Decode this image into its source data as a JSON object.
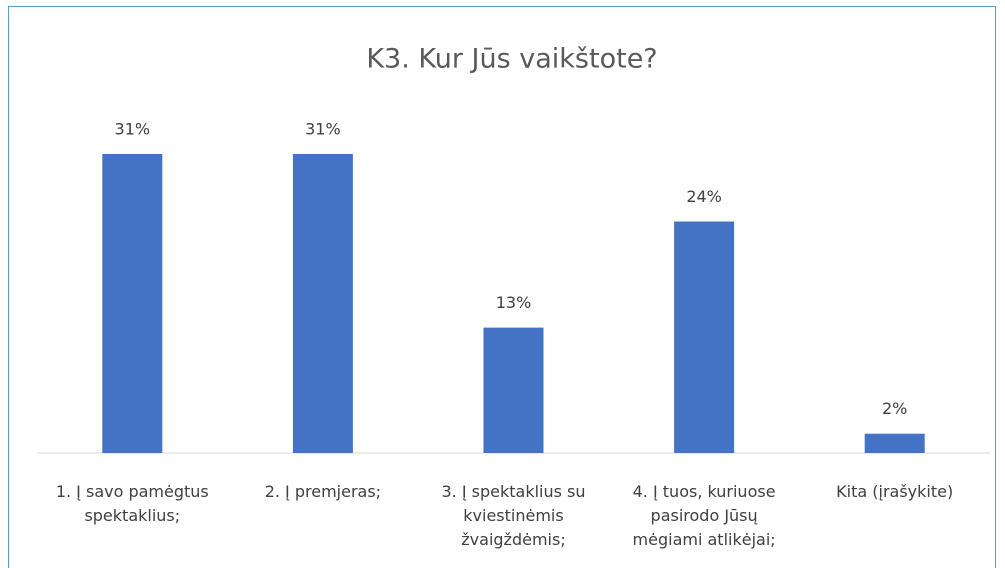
{
  "chart_data": {
    "type": "bar",
    "title": "K3. Kur Jūs vaikštote?",
    "categories": [
      "1. Į savo pamėgtus spektaklius;",
      "2. Į premjeras;",
      "3. Į spektaklius su kviestinėmis žvaigždėmis;",
      "4. Į tuos, kuriuose pasirodo Jūsų mėgiami atlikėjai;",
      "Kita (įrašykite)"
    ],
    "values": [
      31,
      31,
      13,
      24,
      2
    ],
    "value_labels": [
      "31%",
      "31%",
      "13%",
      "24%",
      "2%"
    ],
    "color": "#4472c4"
  }
}
